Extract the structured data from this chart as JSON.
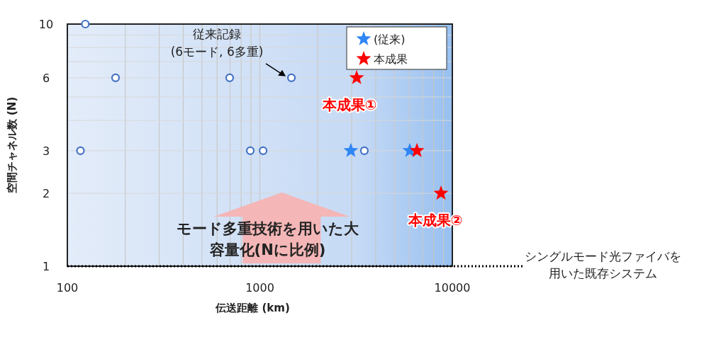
{
  "chart_data": {
    "type": "scatter",
    "xlabel": "伝送距離 (km)",
    "ylabel": "空間チャネル数 (N)",
    "log": "xy",
    "grid": true,
    "legend": "top right",
    "xlim": [
      100,
      10000
    ],
    "ylim": [
      1,
      10
    ],
    "xticks": [
      100,
      {
        "value": 200,
        "label": null
      },
      {
        "value": 300,
        "label": null
      },
      {
        "value": 400,
        "label": null
      },
      {
        "value": 500,
        "label": null
      },
      {
        "value": 600,
        "label": null
      },
      {
        "value": 700,
        "label": null
      },
      {
        "value": 800,
        "label": null
      },
      {
        "value": 900,
        "label": null
      },
      1000,
      {
        "value": 2000,
        "label": null
      },
      {
        "value": 3000,
        "label": null
      },
      {
        "value": 4000,
        "label": null
      },
      {
        "value": 5000,
        "label": null
      },
      {
        "value": 6000,
        "label": null
      },
      {
        "value": 7000,
        "label": null
      },
      {
        "value": 8000,
        "label": null
      },
      {
        "value": 9000,
        "label": null
      },
      10000
    ],
    "yticks": [
      1,
      2,
      3,
      {
        "value": 4,
        "label": null
      },
      {
        "value": 5,
        "label": null
      },
      6,
      {
        "value": 7,
        "label": null
      },
      {
        "value": 8,
        "label": null
      },
      {
        "value": 9,
        "label": null
      },
      10
    ],
    "series": [
      {
        "color": "#4472c4",
        "marker": "circle",
        "x": [
          124,
          178,
          697,
          1459,
          117,
          892,
          1040,
          3490
        ],
        "values": [
          10,
          6,
          6,
          6,
          3,
          3,
          3,
          3
        ]
      },
      {
        "name": "(従来)",
        "color": "#2f86f5",
        "marker": "star",
        "x": [
          2970,
          6010
        ],
        "values": [
          3,
          3
        ]
      },
      {
        "name": "本成果",
        "color": "#ff0000",
        "marker": "star",
        "x": [
          3184,
          6550,
          8730
        ],
        "values": [
          6,
          3,
          2
        ]
      }
    ],
    "ref_lines": [
      {
        "axis": "y",
        "value": 1,
        "label": "シングルモード光ファイバを用いた既存システム",
        "line_style": "dotted",
        "color": "#000000"
      }
    ],
    "annotations": [
      {
        "text": "従来記録\n(6モード, 6多重)",
        "x": 1459,
        "y": 6
      },
      {
        "text": "本成果①",
        "x": 3184,
        "y": 6
      },
      {
        "text": "本成果②",
        "x": 8730,
        "y": 2
      },
      "モード多重技術を用いた大容量化(Nに比例)"
    ]
  }
}
